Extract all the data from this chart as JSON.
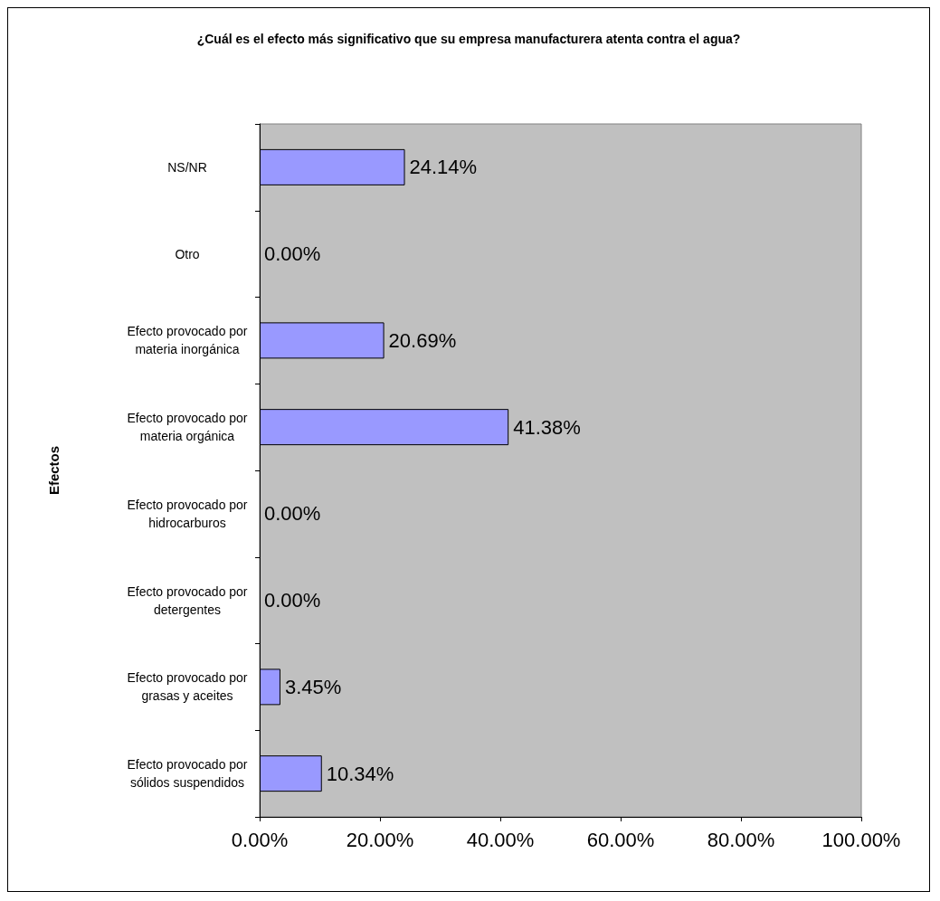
{
  "chart_data": {
    "type": "bar",
    "orientation": "horizontal",
    "title": "¿Cuál es el efecto más significativo que su empresa manufacturera atenta contra el agua?",
    "ylabel": "Efectos",
    "categories": [
      "NS/NR",
      "Otro",
      "Efecto provocado por\nmateria inorgánica",
      "Efecto provocado por\nmateria orgánica",
      "Efecto provocado por\nhidrocarburos",
      "Efecto provocado por\ndetergentes",
      "Efecto provocado por\ngrasas y aceites",
      "Efecto provocado por\nsólidos suspendidos"
    ],
    "values": [
      24.14,
      0,
      20.69,
      41.38,
      0,
      0,
      3.45,
      10.34
    ],
    "value_labels": [
      "24.14%",
      "0.00%",
      "20.69%",
      "41.38%",
      "0.00%",
      "0.00%",
      "3.45%",
      "10.34%"
    ],
    "color": "#9999ff",
    "xlim": [
      0,
      100
    ],
    "xticks": [
      {
        "value": 0,
        "label": "0.00%"
      },
      {
        "value": 20,
        "label": "20.00%"
      },
      {
        "value": 40,
        "label": "40.00%"
      },
      {
        "value": 60,
        "label": "60.00%"
      },
      {
        "value": 80,
        "label": "80.00%"
      },
      {
        "value": 100,
        "label": "100.00%"
      }
    ],
    "grid": false
  }
}
